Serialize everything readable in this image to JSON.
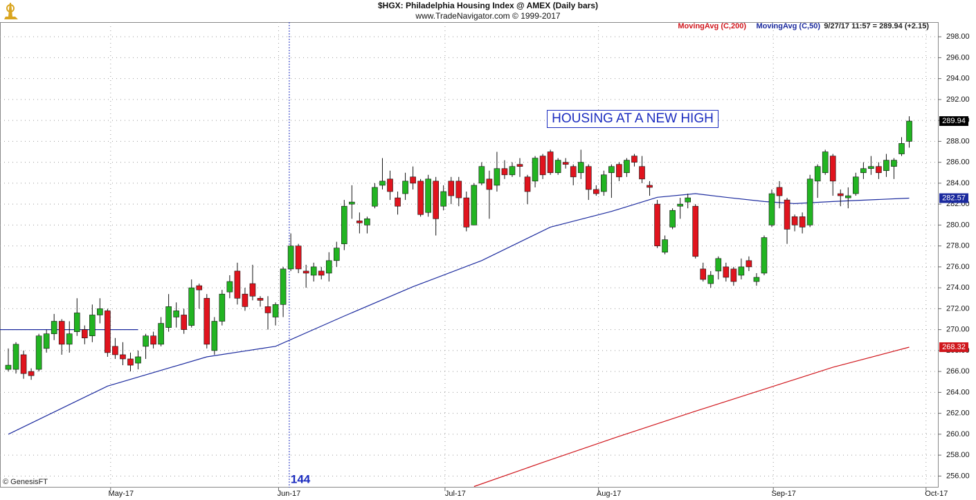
{
  "chart_data": {
    "type": "candlestick",
    "title": "$HGX:  Philadelphia Housing Index @ AMEX  (Daily bars)",
    "subtitle": "www.TradeNavigator.com © 1999-2017",
    "status": "9/27/17 11:57 = 289.94 (+2.15)",
    "annotation": "HOUSING AT A NEW HIGH",
    "credit": "© GenesisFT",
    "marker": {
      "x": 36.8,
      "label": "144",
      "color": "#1a2bbf"
    },
    "up_color": "#22b422",
    "down_color": "#e0141e",
    "ylim": [
      254.9,
      299.4
    ],
    "yticks": [
      {
        "value": 256,
        "label": "256.00"
      },
      {
        "value": 258,
        "label": "258.00"
      },
      {
        "value": 260,
        "label": "260.00"
      },
      {
        "value": 262,
        "label": "262.00"
      },
      {
        "value": 264,
        "label": "264.00"
      },
      {
        "value": 266,
        "label": "266.00"
      },
      {
        "value": 268,
        "label": "268.00"
      },
      {
        "value": 270,
        "label": "270.00"
      },
      {
        "value": 272,
        "label": "272.00"
      },
      {
        "value": 274,
        "label": "274.00"
      },
      {
        "value": 276,
        "label": "276.00"
      },
      {
        "value": 278,
        "label": "278.00"
      },
      {
        "value": 280,
        "label": "280.00"
      },
      {
        "value": 282,
        "label": "282.00"
      },
      {
        "value": 284,
        "label": "284.00"
      },
      {
        "value": 286,
        "label": "286.00"
      },
      {
        "value": 288,
        "label": "288.00"
      },
      {
        "value": 290,
        "label": "290.00"
      },
      {
        "value": 292,
        "label": "292.00"
      },
      {
        "value": 294,
        "label": "294.00"
      },
      {
        "value": 296,
        "label": "296.00"
      },
      {
        "value": 298,
        "label": "298.00"
      }
    ],
    "xticks": [
      {
        "value": 13.4,
        "label": "May-17"
      },
      {
        "value": 35.4,
        "label": "Jun-17"
      },
      {
        "value": 57.2,
        "label": "Jul-17"
      },
      {
        "value": 77.3,
        "label": "Aug-17"
      },
      {
        "value": 100.2,
        "label": "Sep-17"
      },
      {
        "value": 120.2,
        "label": "Oct-17"
      }
    ],
    "grid": true,
    "last_label": "289.94",
    "open": [
      266.2,
      266.2,
      267.6,
      266.0,
      266.2,
      268.2,
      269.6,
      270.8,
      268.6,
      269.8,
      270.0,
      269.4,
      271.4,
      271.8,
      268.4,
      267.6,
      267.2,
      266.8,
      268.4,
      269.4,
      268.6,
      270.2,
      271.2,
      271.4,
      270.4,
      274.2,
      273.0,
      268.0,
      270.8,
      273.6,
      275.6,
      273.4,
      274.4,
      273.0,
      272.2,
      271.2,
      272.4,
      275.8,
      278.0,
      275.6,
      275.2,
      275.6,
      275.4,
      276.6,
      278.2,
      282.0,
      280.4,
      280.0,
      281.8,
      283.8,
      284.4,
      282.6,
      283.0,
      284.6,
      284.2,
      281.2,
      284.2,
      281.8,
      284.2,
      284.2,
      282.6,
      280.0,
      284.0,
      284.4,
      283.8,
      285.4,
      284.8,
      285.8,
      284.6,
      284.2,
      286.6,
      287.0,
      285.0,
      286.0,
      285.6,
      285.0,
      285.6,
      283.4,
      283.2,
      285.0,
      285.8,
      285.0,
      286.6,
      285.6,
      283.8,
      282.0,
      277.4,
      279.8,
      281.8,
      282.2,
      281.8,
      275.8,
      274.4,
      275.6,
      276.0,
      275.8,
      275.2,
      276.6,
      274.6,
      275.4,
      280.0,
      283.6,
      282.4,
      280.8,
      280.8,
      280.0,
      284.2,
      285.0,
      286.6,
      283.0,
      282.6,
      283.0,
      285.0,
      285.4,
      285.6,
      285.2,
      285.6,
      286.8,
      288.0
    ],
    "high": [
      268.2,
      268.8,
      268.0,
      266.3,
      269.6,
      270.0,
      271.5,
      271.0,
      270.8,
      273.0,
      270.4,
      272.4,
      273.0,
      272.0,
      269.2,
      268.8,
      267.8,
      268.0,
      269.6,
      269.8,
      271.2,
      273.4,
      272.6,
      272.0,
      274.8,
      274.4,
      273.4,
      271.2,
      273.8,
      275.2,
      276.4,
      274.0,
      276.2,
      273.2,
      273.2,
      272.6,
      276.0,
      279.2,
      278.2,
      276.2,
      276.4,
      276.0,
      277.4,
      278.4,
      282.4,
      283.8,
      281.2,
      280.8,
      284.0,
      286.4,
      285.2,
      283.2,
      285.0,
      285.6,
      284.4,
      284.8,
      284.6,
      283.8,
      284.6,
      284.6,
      283.2,
      284.0,
      286.0,
      285.2,
      287.0,
      286.2,
      286.0,
      286.4,
      284.8,
      286.6,
      286.8,
      287.2,
      286.4,
      286.4,
      285.8,
      287.2,
      285.8,
      283.8,
      285.2,
      285.8,
      286.0,
      286.4,
      286.8,
      286.6,
      284.2,
      282.4,
      279.0,
      281.6,
      282.6,
      283.0,
      282.0,
      276.4,
      275.6,
      277.0,
      276.4,
      276.0,
      276.8,
      277.0,
      275.4,
      279.0,
      283.4,
      284.2,
      282.6,
      281.0,
      281.2,
      284.8,
      285.8,
      287.2,
      286.8,
      283.4,
      283.6,
      285.0,
      286.0,
      286.6,
      286.0,
      286.8,
      286.4,
      288.4,
      290.4
    ],
    "low": [
      266.0,
      265.8,
      265.3,
      265.2,
      266.0,
      267.8,
      269.0,
      267.6,
      267.8,
      269.4,
      268.6,
      268.8,
      270.6,
      267.4,
      267.2,
      266.6,
      266.0,
      266.2,
      267.2,
      268.2,
      268.4,
      269.8,
      270.2,
      269.6,
      270.2,
      272.0,
      268.2,
      267.6,
      270.4,
      273.0,
      272.4,
      271.8,
      272.8,
      272.2,
      270.0,
      270.4,
      271.2,
      275.6,
      275.4,
      274.0,
      274.6,
      274.8,
      274.6,
      276.0,
      277.6,
      280.6,
      279.2,
      279.2,
      281.6,
      283.4,
      282.4,
      281.0,
      282.4,
      283.4,
      280.8,
      280.8,
      279.0,
      281.4,
      282.0,
      281.8,
      279.4,
      280.0,
      283.8,
      280.6,
      283.2,
      284.4,
      284.6,
      284.6,
      282.0,
      283.6,
      284.4,
      284.8,
      284.8,
      285.4,
      283.8,
      284.4,
      282.4,
      282.8,
      282.8,
      282.6,
      284.2,
      284.6,
      285.6,
      284.0,
      282.8,
      277.8,
      277.2,
      279.6,
      280.6,
      281.6,
      276.8,
      274.6,
      274.0,
      274.8,
      274.6,
      274.2,
      274.8,
      275.6,
      274.2,
      275.2,
      279.8,
      281.6,
      278.2,
      279.4,
      279.2,
      279.8,
      282.6,
      284.8,
      282.8,
      281.8,
      281.6,
      282.8,
      284.4,
      284.8,
      284.4,
      284.6,
      284.4,
      286.6,
      287.4
    ],
    "close": [
      266.6,
      268.6,
      265.8,
      265.6,
      269.4,
      269.6,
      270.8,
      268.6,
      269.6,
      271.6,
      269.2,
      271.4,
      272.0,
      267.8,
      267.6,
      267.2,
      266.6,
      267.4,
      269.4,
      268.6,
      270.6,
      272.2,
      271.8,
      270.0,
      274.0,
      273.8,
      268.6,
      270.8,
      273.4,
      274.6,
      273.0,
      272.2,
      273.2,
      272.8,
      271.6,
      272.4,
      275.8,
      278.0,
      275.8,
      275.4,
      276.0,
      275.2,
      276.6,
      277.8,
      281.8,
      282.2,
      280.2,
      280.6,
      283.6,
      284.2,
      283.2,
      281.8,
      284.2,
      284.0,
      281.0,
      284.4,
      280.6,
      283.2,
      282.8,
      282.6,
      279.8,
      283.8,
      285.6,
      283.4,
      285.4,
      284.8,
      285.6,
      285.6,
      283.2,
      286.4,
      284.8,
      285.0,
      286.2,
      285.8,
      284.6,
      286.0,
      283.4,
      283.0,
      284.8,
      285.6,
      284.6,
      286.2,
      286.0,
      284.4,
      283.6,
      278.0,
      278.6,
      281.4,
      282.0,
      282.6,
      277.0,
      274.8,
      275.2,
      276.8,
      275.0,
      274.6,
      276.0,
      276.0,
      275.0,
      278.8,
      283.0,
      282.8,
      279.6,
      280.0,
      279.8,
      284.4,
      285.6,
      287.0,
      284.2,
      282.8,
      282.8,
      284.6,
      285.4,
      285.6,
      285.0,
      286.2,
      286.2,
      287.8,
      289.94
    ],
    "series": [
      {
        "name": "MovingAvg (C,200)",
        "color": "#d0161c",
        "last_label": "268.32",
        "x": [
          61,
          70,
          80,
          90,
          99,
          108,
          118
        ],
        "values": [
          255.0,
          257.3,
          259.8,
          262.2,
          264.3,
          266.4,
          268.32
        ]
      },
      {
        "name": "MovingAvg (C,50)",
        "color": "#1b2a9e",
        "last_label": "282.57",
        "x": [
          0,
          13,
          26,
          35,
          44,
          53,
          62,
          71,
          79,
          85,
          90,
          94,
          99,
          103,
          108,
          118
        ],
        "values": [
          260.0,
          264.6,
          267.4,
          268.4,
          271.3,
          274.1,
          276.6,
          279.8,
          281.3,
          282.65,
          283.0,
          282.65,
          282.25,
          282.05,
          282.25,
          282.57
        ]
      }
    ],
    "reference_line": {
      "value": 270,
      "x_end": 17,
      "color": "#1b2a9e"
    }
  }
}
